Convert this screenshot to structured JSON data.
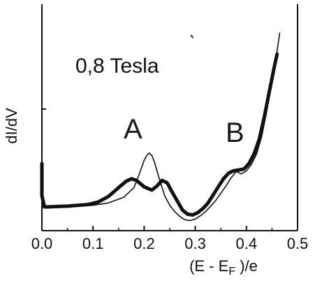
{
  "chart_data": {
    "type": "line",
    "title": "",
    "ylabel": "dI/dV",
    "xlabel_parts": {
      "pre": "(E - E",
      "sub": "F",
      "post": " )/e"
    },
    "xlim": [
      0.0,
      0.5
    ],
    "x_ticks": [
      "0.0",
      "0.1",
      "0.2",
      "0.3",
      "0.4",
      "0.5"
    ],
    "y_tick_labels": [],
    "grid": false,
    "legend": "none",
    "annotations": {
      "field": "0,8 Tesla",
      "peak_a": "A",
      "peak_b": "B"
    },
    "series": [
      {
        "style": "thick",
        "x": [
          0.0,
          0.0,
          0.005,
          0.01,
          0.05,
          0.09,
          0.11,
          0.13,
          0.15,
          0.165,
          0.175,
          0.185,
          0.2,
          0.215,
          0.225,
          0.235,
          0.245,
          0.255,
          0.265,
          0.275,
          0.285,
          0.295,
          0.305,
          0.315,
          0.325,
          0.335,
          0.345,
          0.355,
          0.365,
          0.375,
          0.385,
          0.395,
          0.405,
          0.415,
          0.425,
          0.435,
          0.445,
          0.455,
          0.46
        ],
        "y": [
          0.27,
          0.07,
          0.0,
          0.0,
          0.005,
          0.015,
          0.03,
          0.065,
          0.12,
          0.16,
          0.175,
          0.165,
          0.125,
          0.105,
          0.13,
          0.165,
          0.15,
          0.09,
          0.035,
          -0.02,
          -0.045,
          -0.05,
          -0.035,
          -0.01,
          0.025,
          0.075,
          0.125,
          0.175,
          0.21,
          0.225,
          0.23,
          0.235,
          0.27,
          0.33,
          0.42,
          0.56,
          0.72,
          0.88,
          0.95
        ]
      },
      {
        "style": "thin",
        "x": [
          0.0,
          0.05,
          0.1,
          0.13,
          0.16,
          0.18,
          0.19,
          0.2,
          0.205,
          0.21,
          0.215,
          0.22,
          0.23,
          0.24,
          0.25,
          0.26,
          0.27,
          0.28,
          0.29,
          0.3,
          0.31,
          0.32,
          0.34,
          0.36,
          0.37,
          0.38,
          0.39,
          0.4,
          0.41,
          0.42,
          0.43,
          0.44,
          0.45,
          0.46,
          0.465
        ],
        "y": [
          0.0,
          0.0,
          0.01,
          0.025,
          0.06,
          0.12,
          0.2,
          0.29,
          0.32,
          0.335,
          0.32,
          0.28,
          0.17,
          0.07,
          0.01,
          -0.03,
          -0.06,
          -0.08,
          -0.085,
          -0.075,
          -0.055,
          -0.03,
          0.04,
          0.13,
          0.18,
          0.22,
          0.205,
          0.225,
          0.265,
          0.33,
          0.44,
          0.6,
          0.78,
          0.97,
          1.08
        ]
      }
    ]
  }
}
